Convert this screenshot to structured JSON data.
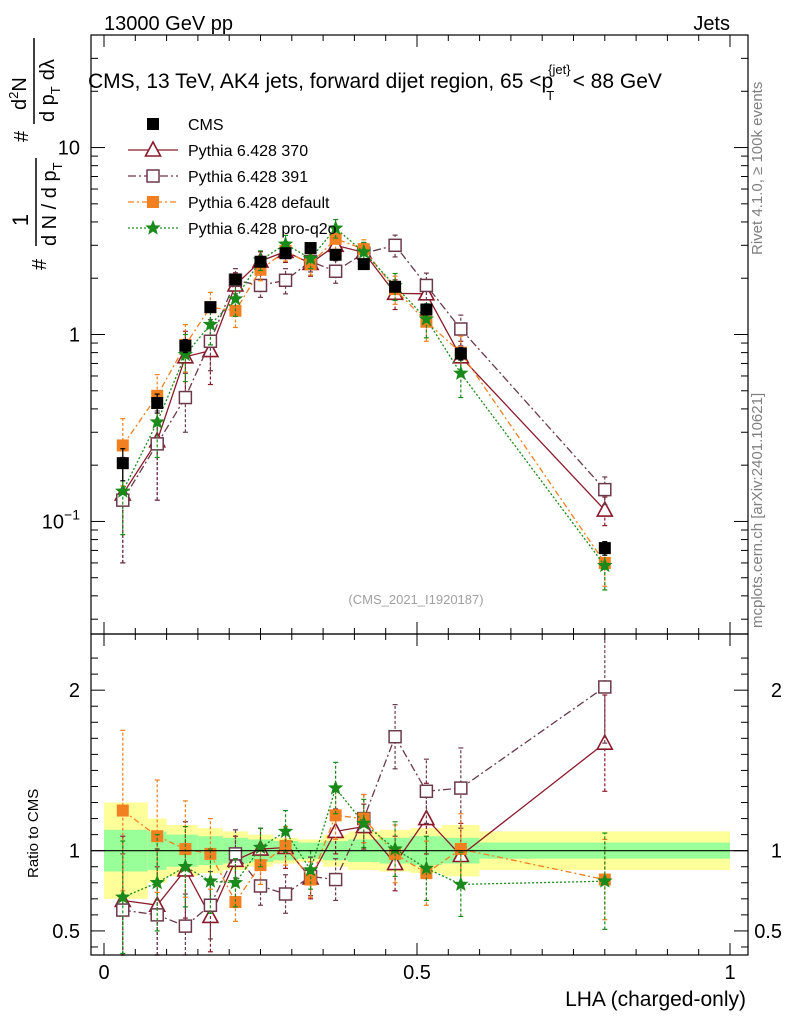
{
  "chart_data": {
    "type": "scatter",
    "header_left": "13000 GeV pp",
    "header_right": "Jets",
    "title": "CMS, 13 TeV, AK4 jets, forward dijet region, 65 <p",
    "title_sup": "{jet}",
    "title_sub": "T",
    "title_tail": "< 88 GeV",
    "ylabel_parts": {
      "hash": "#",
      "one": "1",
      "den": "d N / d p",
      "den_sub": "T",
      "num_top": "d",
      "num_sup": "2",
      "num_n": "N",
      "num_den": "d p",
      "num_den_sub": "T",
      "dlam": "dλ",
      "hash2": "#"
    },
    "side_label": "Rivet 4.1.0, ≥ 100k events",
    "side_label2": "mcplots.cern.ch [arXiv:2401.10621]",
    "watermark": "(CMS_2021_I1920187)",
    "xlabel": "LHA (charged-only)",
    "ratio_ylabel": "Ratio to CMS",
    "xlim": [
      0,
      1
    ],
    "ylim_main": [
      0.025,
      40
    ],
    "ylim_ratio": [
      0.35,
      2.35
    ],
    "x_ticks": [
      {
        "v": 0,
        "label": "0"
      },
      {
        "v": 0.5,
        "label": "0.5"
      },
      {
        "v": 1,
        "label": "1"
      }
    ],
    "main_y_ticks": [
      {
        "v": 0.1,
        "base": "10",
        "exp": "−1"
      },
      {
        "v": 1,
        "base": "1",
        "exp": ""
      },
      {
        "v": 10,
        "base": "10",
        "exp": ""
      }
    ],
    "ratio_y_ticks": [
      {
        "v": 0.5,
        "label": "0.5"
      },
      {
        "v": 1,
        "label": "1"
      },
      {
        "v": 2,
        "label": "2"
      }
    ],
    "bins": [
      [
        0,
        0.07
      ],
      [
        0.07,
        0.1
      ],
      [
        0.1,
        0.15
      ],
      [
        0.15,
        0.19
      ],
      [
        0.19,
        0.23
      ],
      [
        0.23,
        0.27
      ],
      [
        0.27,
        0.31
      ],
      [
        0.31,
        0.35
      ],
      [
        0.35,
        0.39
      ],
      [
        0.39,
        0.44
      ],
      [
        0.44,
        0.49
      ],
      [
        0.49,
        0.54
      ],
      [
        0.54,
        0.6
      ],
      [
        0.6,
        1.0
      ]
    ],
    "x": [
      0.03,
      0.085,
      0.13,
      0.17,
      0.21,
      0.25,
      0.29,
      0.33,
      0.37,
      0.415,
      0.465,
      0.515,
      0.57,
      0.8
    ],
    "band_inner": [
      0.13,
      0.12,
      0.1,
      0.09,
      0.08,
      0.07,
      0.06,
      0.05,
      0.06,
      0.07,
      0.08,
      0.09,
      0.08,
      0.05
    ],
    "band_outer": [
      0.3,
      0.2,
      0.16,
      0.14,
      0.12,
      0.1,
      0.08,
      0.07,
      0.1,
      0.12,
      0.13,
      0.14,
      0.16,
      0.12
    ],
    "series": [
      {
        "name": "CMS",
        "color": "#000000",
        "marker": "square-filled",
        "dash": "",
        "kind": "data",
        "values": [
          0.205,
          0.43,
          0.87,
          1.4,
          1.97,
          2.45,
          2.72,
          2.9,
          2.67,
          2.38,
          1.8,
          1.36,
          0.79,
          0.072
        ],
        "err": [
          0.04,
          0.05,
          0.07,
          0.08,
          0.09,
          0.1,
          0.11,
          0.12,
          0.12,
          0.11,
          0.09,
          0.08,
          0.06,
          0.006
        ],
        "ratio": [
          1,
          1,
          1,
          1,
          1,
          1,
          1,
          1,
          1,
          1,
          1,
          1,
          1,
          1
        ],
        "ratio_err": [
          0,
          0,
          0,
          0,
          0,
          0,
          0,
          0,
          0,
          0,
          0,
          0,
          0,
          0
        ]
      },
      {
        "name": "Pythia 6.428 370",
        "color": "#8b1a2b",
        "marker": "triangle-open",
        "dash": "",
        "kind": "mc",
        "values": [
          0.14,
          0.27,
          0.76,
          0.82,
          1.84,
          2.47,
          2.78,
          2.4,
          3.0,
          2.75,
          1.66,
          1.65,
          0.76,
          0.115
        ],
        "err": [
          0.08,
          0.14,
          0.28,
          0.28,
          0.3,
          0.3,
          0.35,
          0.35,
          0.4,
          0.35,
          0.3,
          0.3,
          0.16,
          0.02
        ],
        "ratio": [
          0.69,
          0.66,
          0.88,
          0.59,
          0.94,
          1.01,
          1.02,
          0.83,
          1.12,
          1.15,
          0.92,
          1.2,
          0.97,
          1.67
        ],
        "ratio_err": [
          0.4,
          0.35,
          0.3,
          0.22,
          0.15,
          0.13,
          0.13,
          0.13,
          0.14,
          0.14,
          0.17,
          0.22,
          0.2,
          0.3
        ]
      },
      {
        "name": "Pythia 6.428 391",
        "color": "#6b3a4a",
        "marker": "square-open",
        "dash": "8,3,2,3",
        "kind": "mc",
        "values": [
          0.13,
          0.26,
          0.46,
          0.92,
          1.95,
          1.83,
          1.95,
          2.46,
          2.18,
          2.72,
          3.0,
          1.83,
          1.07,
          0.148
        ],
        "err": [
          0.07,
          0.13,
          0.16,
          0.28,
          0.3,
          0.25,
          0.3,
          0.3,
          0.3,
          0.35,
          0.4,
          0.3,
          0.2,
          0.025
        ],
        "ratio": [
          0.63,
          0.6,
          0.53,
          0.66,
          0.98,
          0.78,
          0.73,
          0.84,
          0.82,
          1.2,
          1.71,
          1.37,
          1.39,
          2.02
        ],
        "ratio_err": [
          0.35,
          0.3,
          0.2,
          0.21,
          0.15,
          0.12,
          0.12,
          0.12,
          0.13,
          0.15,
          0.2,
          0.2,
          0.25,
          0.35
        ]
      },
      {
        "name": "Pythia 6.428 default",
        "color": "#f28020",
        "marker": "square-filled",
        "dash": "6,3,2,3",
        "kind": "mc",
        "values": [
          0.255,
          0.47,
          0.88,
          1.4,
          1.34,
          2.22,
          2.8,
          2.38,
          3.25,
          2.86,
          1.75,
          1.17,
          0.8,
          0.06
        ],
        "err": [
          0.1,
          0.14,
          0.25,
          0.28,
          0.25,
          0.28,
          0.33,
          0.3,
          0.4,
          0.35,
          0.3,
          0.25,
          0.18,
          0.015
        ],
        "ratio": [
          1.25,
          1.09,
          1.01,
          0.98,
          0.68,
          0.91,
          1.03,
          0.82,
          1.22,
          1.2,
          0.98,
          0.86,
          1.01,
          0.82
        ],
        "ratio_err": [
          0.5,
          0.35,
          0.3,
          0.22,
          0.12,
          0.12,
          0.12,
          0.11,
          0.15,
          0.15,
          0.18,
          0.2,
          0.22,
          0.25
        ]
      },
      {
        "name": "Pythia 6.428 pro-q2o",
        "color": "#1a8a1a",
        "marker": "star",
        "dash": "2,2",
        "kind": "mc",
        "values": [
          0.145,
          0.34,
          0.78,
          1.13,
          1.55,
          2.5,
          3.04,
          2.55,
          3.7,
          2.76,
          1.82,
          1.21,
          0.62,
          0.058
        ],
        "err": [
          0.06,
          0.12,
          0.22,
          0.25,
          0.3,
          0.3,
          0.35,
          0.3,
          0.42,
          0.35,
          0.3,
          0.25,
          0.16,
          0.015
        ],
        "ratio": [
          0.71,
          0.8,
          0.9,
          0.81,
          0.8,
          1.02,
          1.12,
          0.88,
          1.39,
          1.17,
          1.01,
          0.89,
          0.79,
          0.81
        ],
        "ratio_err": [
          0.35,
          0.3,
          0.25,
          0.2,
          0.15,
          0.12,
          0.13,
          0.12,
          0.16,
          0.15,
          0.17,
          0.2,
          0.2,
          0.3
        ]
      }
    ]
  }
}
